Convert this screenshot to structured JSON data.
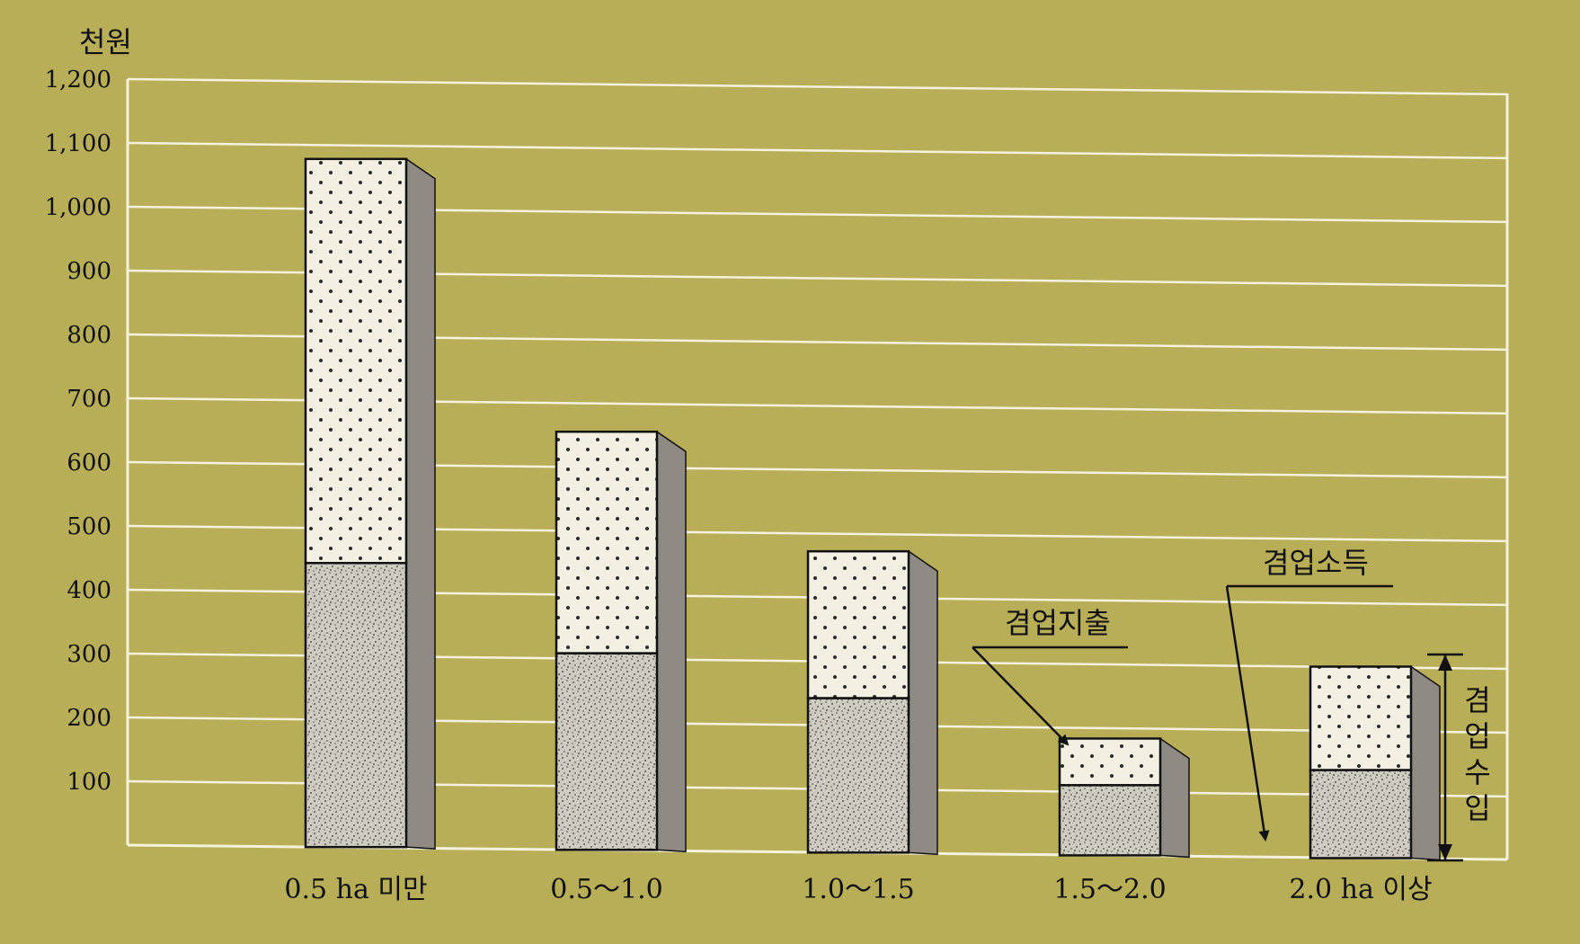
{
  "chart_data": {
    "type": "bar",
    "stacked": true,
    "unit_label": "천원",
    "categories": [
      "0.5 ha 미만",
      "0.5～1.0",
      "1.0～1.5",
      "1.5～2.0",
      "2.0 ha 이상"
    ],
    "series": [
      {
        "name": "겸업지출",
        "values": [
          445,
          308,
          242,
          110,
          138
        ]
      },
      {
        "name": "겸업소득",
        "values": [
          633,
          347,
          230,
          73,
          162
        ]
      }
    ],
    "yticks": [
      "100",
      "200",
      "300",
      "400",
      "500",
      "600",
      "700",
      "800",
      "900",
      "1,000",
      "1,100",
      "1,200"
    ],
    "ylim": [
      0,
      1200
    ],
    "grid": true,
    "annotations": {
      "expense_label": "겸업지출",
      "income_label": "겸업소득",
      "total_label": "겸업수입",
      "total_label_chars": [
        "겸",
        "업",
        "수",
        "입"
      ]
    },
    "colors": {
      "background": "#b9ae58",
      "grid": "#f4f1dc",
      "dot_fill": "#f3efe2",
      "stipple_fill": "#cfcbc0",
      "side_face": "#8f8b84"
    }
  }
}
